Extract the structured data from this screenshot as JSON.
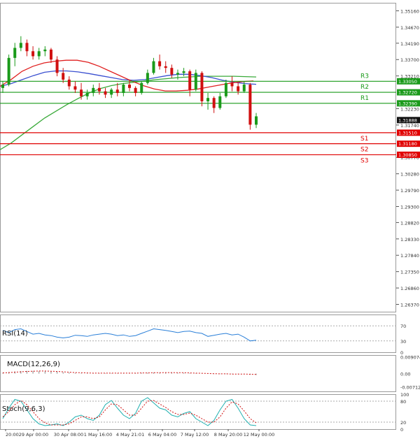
{
  "chart_data": {
    "type": "candlestick",
    "main": {
      "y_ticks": [
        "1.35160",
        "1.34670",
        "1.34190",
        "1.33700",
        "1.33210",
        "1.32230",
        "1.31740",
        "1.30770",
        "1.30280",
        "1.29790",
        "1.29300",
        "1.28820",
        "1.28330",
        "1.27840",
        "1.27350",
        "1.26860",
        "1.26370"
      ],
      "ylim": [
        1.2615,
        1.354
      ],
      "candles": [
        [
          1.3285,
          1.3305,
          1.327,
          1.3295
        ],
        [
          1.3295,
          1.3385,
          1.329,
          1.3375
        ],
        [
          1.3375,
          1.342,
          1.335,
          1.3405
        ],
        [
          1.3405,
          1.344,
          1.3395,
          1.342
        ],
        [
          1.342,
          1.343,
          1.338,
          1.3395
        ],
        [
          1.3395,
          1.341,
          1.337,
          1.338
        ],
        [
          1.338,
          1.3405,
          1.337,
          1.3395
        ],
        [
          1.3395,
          1.341,
          1.338,
          1.34
        ],
        [
          1.34,
          1.3405,
          1.336,
          1.337
        ],
        [
          1.337,
          1.338,
          1.332,
          1.333
        ],
        [
          1.333,
          1.3345,
          1.33,
          1.331
        ],
        [
          1.331,
          1.332,
          1.328,
          1.329
        ],
        [
          1.329,
          1.3305,
          1.327,
          1.328
        ],
        [
          1.328,
          1.33,
          1.325,
          1.326
        ],
        [
          1.326,
          1.328,
          1.325,
          1.327
        ],
        [
          1.327,
          1.3295,
          1.326,
          1.3285
        ],
        [
          1.3285,
          1.33,
          1.3265,
          1.3275
        ],
        [
          1.3275,
          1.3285,
          1.3255,
          1.3265
        ],
        [
          1.3265,
          1.3285,
          1.3255,
          1.328
        ],
        [
          1.328,
          1.33,
          1.326,
          1.327
        ],
        [
          1.327,
          1.33,
          1.326,
          1.3295
        ],
        [
          1.3295,
          1.331,
          1.3275,
          1.3285
        ],
        [
          1.3285,
          1.329,
          1.326,
          1.327
        ],
        [
          1.327,
          1.3305,
          1.3265,
          1.33
        ],
        [
          1.33,
          1.334,
          1.3295,
          1.333
        ],
        [
          1.333,
          1.3375,
          1.3325,
          1.3365
        ],
        [
          1.3365,
          1.3385,
          1.334,
          1.335
        ],
        [
          1.335,
          1.3365,
          1.333,
          1.3345
        ],
        [
          1.3345,
          1.3355,
          1.3315,
          1.3325
        ],
        [
          1.3325,
          1.334,
          1.331,
          1.333
        ],
        [
          1.333,
          1.3345,
          1.332,
          1.3335
        ],
        [
          1.3335,
          1.334,
          1.326,
          1.328
        ],
        [
          1.328,
          1.334,
          1.3275,
          1.333
        ],
        [
          1.333,
          1.3335,
          1.323,
          1.3245
        ],
        [
          1.3245,
          1.327,
          1.322,
          1.3255
        ],
        [
          1.3255,
          1.326,
          1.321,
          1.3225
        ],
        [
          1.3225,
          1.327,
          1.322,
          1.326
        ],
        [
          1.326,
          1.331,
          1.3255,
          1.33
        ],
        [
          1.33,
          1.332,
          1.3275,
          1.329
        ],
        [
          1.329,
          1.33,
          1.3265,
          1.3275
        ],
        [
          1.3275,
          1.3305,
          1.327,
          1.3295
        ],
        [
          1.3295,
          1.33,
          1.316,
          1.3175
        ],
        [
          1.3175,
          1.321,
          1.3165,
          1.32
        ]
      ],
      "ma_red": [
        1.329,
        1.331,
        1.3335,
        1.335,
        1.336,
        1.3365,
        1.3368,
        1.3368,
        1.3362,
        1.335,
        1.3335,
        1.332,
        1.3305,
        1.3292,
        1.3282,
        1.3276,
        1.3276,
        1.3278,
        1.3282,
        1.3288,
        1.3294,
        1.33,
        1.3304,
        1.3306
      ],
      "ma_blue": [
        1.329,
        1.3298,
        1.331,
        1.3322,
        1.3332,
        1.3336,
        1.3336,
        1.3333,
        1.3328,
        1.3322,
        1.3316,
        1.331,
        1.3308,
        1.331,
        1.3316,
        1.3322,
        1.3326,
        1.3326,
        1.3322,
        1.3316,
        1.3308,
        1.3302,
        1.3298,
        1.3296
      ],
      "ma_green": [
        1.31,
        1.312,
        1.3145,
        1.317,
        1.3195,
        1.3215,
        1.3235,
        1.3253,
        1.327,
        1.3283,
        1.3292,
        1.3298,
        1.3302,
        1.3306,
        1.331,
        1.3313,
        1.3316,
        1.3318,
        1.332,
        1.332,
        1.332,
        1.332,
        1.3319,
        1.3318
      ],
      "levels": [
        {
          "name": "R3",
          "value": 1.3305,
          "label": "1.33050",
          "color": "#1a9a1a"
        },
        {
          "name": "R2",
          "value": 1.3272,
          "label": "1.32720",
          "color": "#1a9a1a"
        },
        {
          "name": "R1",
          "value": 1.3239,
          "label": "1.32390",
          "color": "#1a9a1a"
        },
        {
          "name": "S1",
          "value": 1.3151,
          "label": "1.31510",
          "color": "#e00000"
        },
        {
          "name": "S2",
          "value": 1.3118,
          "label": "1.31180",
          "color": "#e00000"
        },
        {
          "name": "S3",
          "value": 1.3085,
          "label": "1.30850",
          "color": "#e00000"
        }
      ],
      "current_price": {
        "value": 1.31888,
        "label": "1.31888"
      }
    },
    "x_labels": [
      "20:00",
      "29 Apr 00:00",
      "30 Apr 08:00",
      "1 May 16:00",
      "4 May 21:01",
      "6 May 04:00",
      "7 May 12:00",
      "8 May 20:00",
      "12 May 00:00"
    ],
    "rsi": {
      "title": "RSI(14)",
      "ticks": [
        "70",
        "30",
        "0"
      ],
      "ylim": [
        0,
        100
      ],
      "values": [
        58,
        52,
        60,
        62,
        55,
        48,
        50,
        46,
        44,
        40,
        38,
        40,
        45,
        44,
        42,
        46,
        48,
        50,
        48,
        44,
        46,
        42,
        44,
        50,
        56,
        62,
        60,
        58,
        55,
        52,
        55,
        56,
        52,
        50,
        42,
        45,
        48,
        50,
        46,
        48,
        40,
        30,
        32
      ]
    },
    "macd": {
      "title": "MACD(12,26,9)",
      "ticks": [
        "0.009074",
        "0.00",
        "-0.007124"
      ],
      "ylim": [
        -0.0095,
        0.01
      ],
      "hist": [
        0.0006,
        0.0009,
        0.0012,
        0.0014,
        0.0015,
        0.0015,
        0.0014,
        0.0013,
        0.0012,
        0.001,
        0.0008,
        0.0006,
        0.0004,
        0.0003,
        0.0002,
        0.0002,
        0.0002,
        0.0002,
        0.0002,
        0.0002,
        0.0002,
        0.0003,
        0.0003,
        0.0004,
        0.0005,
        0.0006,
        0.0006,
        0.0006,
        0.0005,
        0.0004,
        0.0004,
        0.0003,
        0.0003,
        0.0001,
        -0.0001,
        -0.0002,
        -0.0002,
        -0.0002,
        -0.0002,
        -0.0002,
        -0.0003,
        -0.0006,
        -0.0007
      ],
      "signal": [
        0.0004,
        0.0006,
        0.0008,
        0.001,
        0.0012,
        0.0013,
        0.0014,
        0.0014,
        0.0013,
        0.0012,
        0.001,
        0.0008,
        0.0006,
        0.0005,
        0.0004,
        0.0003,
        0.0003,
        0.0003,
        0.0003,
        0.0003,
        0.0003,
        0.0003,
        0.0003,
        0.0004,
        0.0004,
        0.0005,
        0.0005,
        0.0006,
        0.0006,
        0.0005,
        0.0005,
        0.0004,
        0.0003,
        0.0002,
        0.0001,
        0.0,
        -0.0001,
        -0.0001,
        -0.0002,
        -0.0002,
        -0.0002,
        -0.0003,
        -0.0004
      ]
    },
    "stoch": {
      "title": "Stoch(9,6,3)",
      "ticks": [
        "100",
        "80",
        "20",
        "0"
      ],
      "ylim": [
        0,
        100
      ],
      "main": [
        30,
        60,
        85,
        80,
        55,
        30,
        15,
        10,
        12,
        15,
        10,
        20,
        35,
        40,
        30,
        25,
        40,
        70,
        82,
        60,
        40,
        30,
        45,
        80,
        90,
        75,
        60,
        55,
        40,
        35,
        45,
        50,
        30,
        20,
        10,
        25,
        55,
        80,
        85,
        60,
        30,
        12,
        10
      ],
      "signal": [
        35,
        50,
        70,
        82,
        70,
        50,
        30,
        18,
        12,
        12,
        12,
        15,
        25,
        35,
        35,
        30,
        35,
        55,
        72,
        70,
        55,
        40,
        40,
        60,
        80,
        82,
        72,
        62,
        50,
        42,
        42,
        46,
        40,
        30,
        20,
        20,
        35,
        60,
        78,
        72,
        52,
        30,
        18
      ]
    }
  }
}
